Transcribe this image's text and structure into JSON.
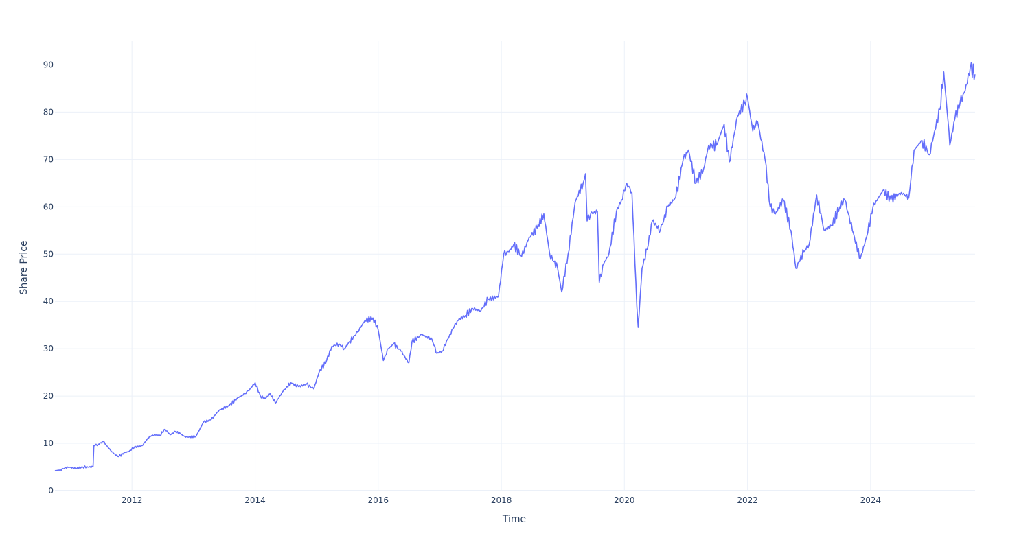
{
  "chart_data": {
    "type": "line",
    "xlabel": "Time",
    "ylabel": "Share Price",
    "x_axis_type": "date",
    "xlim": [
      "2010-10-01",
      "2025-09-12"
    ],
    "ylim": [
      0,
      95
    ],
    "x_ticks": [
      {
        "value": "2012-01-01",
        "label": "2012"
      },
      {
        "value": "2014-01-01",
        "label": "2014"
      },
      {
        "value": "2016-01-01",
        "label": "2016"
      },
      {
        "value": "2018-01-01",
        "label": "2018"
      },
      {
        "value": "2020-01-01",
        "label": "2020"
      },
      {
        "value": "2022-01-01",
        "label": "2022"
      },
      {
        "value": "2024-01-01",
        "label": "2024"
      }
    ],
    "y_ticks": [
      {
        "value": 0,
        "label": "0"
      },
      {
        "value": 10,
        "label": "10"
      },
      {
        "value": 20,
        "label": "20"
      },
      {
        "value": 30,
        "label": "30"
      },
      {
        "value": 40,
        "label": "40"
      },
      {
        "value": 50,
        "label": "50"
      },
      {
        "value": 60,
        "label": "60"
      },
      {
        "value": 70,
        "label": "70"
      },
      {
        "value": 80,
        "label": "80"
      },
      {
        "value": 90,
        "label": "90"
      }
    ],
    "grid": true,
    "legend": "none",
    "line_color": "#636efa",
    "series": [
      {
        "points": [
          [
            "2010-10-01",
            4.2
          ],
          [
            "2010-11-01",
            4.4
          ],
          [
            "2010-12-15",
            5.0
          ],
          [
            "2011-02-01",
            4.7
          ],
          [
            "2011-03-15",
            5.0
          ],
          [
            "2011-05-15",
            5.0
          ],
          [
            "2011-05-20",
            9.5
          ],
          [
            "2011-06-15",
            9.8
          ],
          [
            "2011-07-15",
            10.4
          ],
          [
            "2011-08-15",
            9.0
          ],
          [
            "2011-09-15",
            7.8
          ],
          [
            "2011-10-15",
            7.2
          ],
          [
            "2011-11-15",
            8.0
          ],
          [
            "2011-12-15",
            8.3
          ],
          [
            "2012-01-15",
            9.2
          ],
          [
            "2012-03-01",
            9.5
          ],
          [
            "2012-04-15",
            11.5
          ],
          [
            "2012-05-15",
            11.8
          ],
          [
            "2012-06-15",
            11.7
          ],
          [
            "2012-07-15",
            13.0
          ],
          [
            "2012-08-15",
            11.8
          ],
          [
            "2012-09-15",
            12.5
          ],
          [
            "2012-10-15",
            12.0
          ],
          [
            "2012-11-15",
            11.3
          ],
          [
            "2013-01-15",
            11.5
          ],
          [
            "2013-03-01",
            14.5
          ],
          [
            "2013-04-15",
            15.0
          ],
          [
            "2013-06-01",
            17.0
          ],
          [
            "2013-08-01",
            18.0
          ],
          [
            "2013-09-15",
            19.5
          ],
          [
            "2013-11-01",
            20.5
          ],
          [
            "2013-12-01",
            21.5
          ],
          [
            "2014-01-01",
            22.8
          ],
          [
            "2014-02-01",
            20.0
          ],
          [
            "2014-03-01",
            19.5
          ],
          [
            "2014-04-01",
            20.5
          ],
          [
            "2014-05-01",
            18.5
          ],
          [
            "2014-06-15",
            21.0
          ],
          [
            "2014-08-01",
            22.8
          ],
          [
            "2014-09-15",
            22.0
          ],
          [
            "2014-11-01",
            22.5
          ],
          [
            "2014-12-15",
            21.5
          ],
          [
            "2015-01-15",
            25.0
          ],
          [
            "2015-03-01",
            27.5
          ],
          [
            "2015-04-01",
            30.5
          ],
          [
            "2015-05-15",
            31.0
          ],
          [
            "2015-06-15",
            30.0
          ],
          [
            "2015-07-15",
            31.5
          ],
          [
            "2015-09-01",
            33.5
          ],
          [
            "2015-10-15",
            36.0
          ],
          [
            "2015-12-01",
            36.5
          ],
          [
            "2016-01-01",
            34.0
          ],
          [
            "2016-02-01",
            27.5
          ],
          [
            "2016-03-01",
            30.0
          ],
          [
            "2016-04-01",
            31.0
          ],
          [
            "2016-05-15",
            29.5
          ],
          [
            "2016-07-01",
            27.0
          ],
          [
            "2016-07-20",
            31.5
          ],
          [
            "2016-09-15",
            33.0
          ],
          [
            "2016-11-15",
            32.0
          ],
          [
            "2016-12-15",
            29.0
          ],
          [
            "2017-01-15",
            29.5
          ],
          [
            "2017-03-01",
            33.0
          ],
          [
            "2017-04-15",
            36.0
          ],
          [
            "2017-06-01",
            37.0
          ],
          [
            "2017-07-15",
            38.5
          ],
          [
            "2017-09-01",
            38.0
          ],
          [
            "2017-10-15",
            40.5
          ],
          [
            "2017-12-15",
            41.0
          ],
          [
            "2018-01-15",
            50.0
          ],
          [
            "2018-02-15",
            50.5
          ],
          [
            "2018-03-15",
            52.0
          ],
          [
            "2018-05-01",
            49.5
          ],
          [
            "2018-06-15",
            53.5
          ],
          [
            "2018-08-01",
            55.5
          ],
          [
            "2018-09-10",
            58.5
          ],
          [
            "2018-10-15",
            50.0
          ],
          [
            "2018-12-01",
            47.0
          ],
          [
            "2018-12-25",
            42.0
          ],
          [
            "2019-02-01",
            50.0
          ],
          [
            "2019-03-15",
            61.0
          ],
          [
            "2019-05-01",
            65.0
          ],
          [
            "2019-05-15",
            67.0
          ],
          [
            "2019-05-25",
            57.0
          ],
          [
            "2019-06-15",
            58.5
          ],
          [
            "2019-07-25",
            59.0
          ],
          [
            "2019-08-05",
            44.0
          ],
          [
            "2019-09-01",
            48.0
          ],
          [
            "2019-10-01",
            50.0
          ],
          [
            "2019-11-15",
            59.0
          ],
          [
            "2019-12-15",
            61.5
          ],
          [
            "2020-01-15",
            65.0
          ],
          [
            "2020-02-15",
            63.0
          ],
          [
            "2020-03-15",
            39.0
          ],
          [
            "2020-03-23",
            34.5
          ],
          [
            "2020-04-15",
            47.0
          ],
          [
            "2020-05-15",
            51.0
          ],
          [
            "2020-06-15",
            57.0
          ],
          [
            "2020-08-01",
            55.0
          ],
          [
            "2020-09-15",
            60.0
          ],
          [
            "2020-11-01",
            62.0
          ],
          [
            "2020-12-15",
            70.0
          ],
          [
            "2021-01-15",
            72.0
          ],
          [
            "2021-03-01",
            65.0
          ],
          [
            "2021-04-15",
            68.0
          ],
          [
            "2021-05-15",
            73.0
          ],
          [
            "2021-07-01",
            73.0
          ],
          [
            "2021-08-15",
            77.5
          ],
          [
            "2021-09-15",
            69.5
          ],
          [
            "2021-11-01",
            79.0
          ],
          [
            "2021-12-15",
            82.0
          ],
          [
            "2022-01-01",
            83.0
          ],
          [
            "2022-02-01",
            76.0
          ],
          [
            "2022-03-01",
            78.0
          ],
          [
            "2022-04-15",
            70.0
          ],
          [
            "2022-05-15",
            60.0
          ],
          [
            "2022-06-15",
            58.5
          ],
          [
            "2022-08-01",
            61.5
          ],
          [
            "2022-09-15",
            55.0
          ],
          [
            "2022-10-15",
            47.0
          ],
          [
            "2022-12-01",
            50.5
          ],
          [
            "2023-01-01",
            52.0
          ],
          [
            "2023-02-15",
            62.5
          ],
          [
            "2023-04-01",
            55.0
          ],
          [
            "2023-05-15",
            56.0
          ],
          [
            "2023-07-01",
            60.0
          ],
          [
            "2023-08-01",
            61.5
          ],
          [
            "2023-09-15",
            55.0
          ],
          [
            "2023-11-01",
            49.0
          ],
          [
            "2023-12-15",
            54.5
          ],
          [
            "2024-01-15",
            60.0
          ],
          [
            "2024-03-15",
            63.5
          ],
          [
            "2024-05-01",
            61.5
          ],
          [
            "2024-07-01",
            63.0
          ],
          [
            "2024-08-15",
            62.0
          ],
          [
            "2024-09-15",
            72.0
          ],
          [
            "2024-11-01",
            74.0
          ],
          [
            "2024-12-15",
            71.0
          ],
          [
            "2025-01-15",
            76.0
          ],
          [
            "2025-02-15",
            80.5
          ],
          [
            "2025-03-10",
            88.5
          ],
          [
            "2025-04-05",
            78.0
          ],
          [
            "2025-04-15",
            73.0
          ],
          [
            "2025-05-15",
            78.5
          ],
          [
            "2025-06-15",
            82.0
          ],
          [
            "2025-07-15",
            84.5
          ],
          [
            "2025-08-15",
            89.5
          ],
          [
            "2025-09-12",
            88.0
          ]
        ]
      }
    ]
  }
}
